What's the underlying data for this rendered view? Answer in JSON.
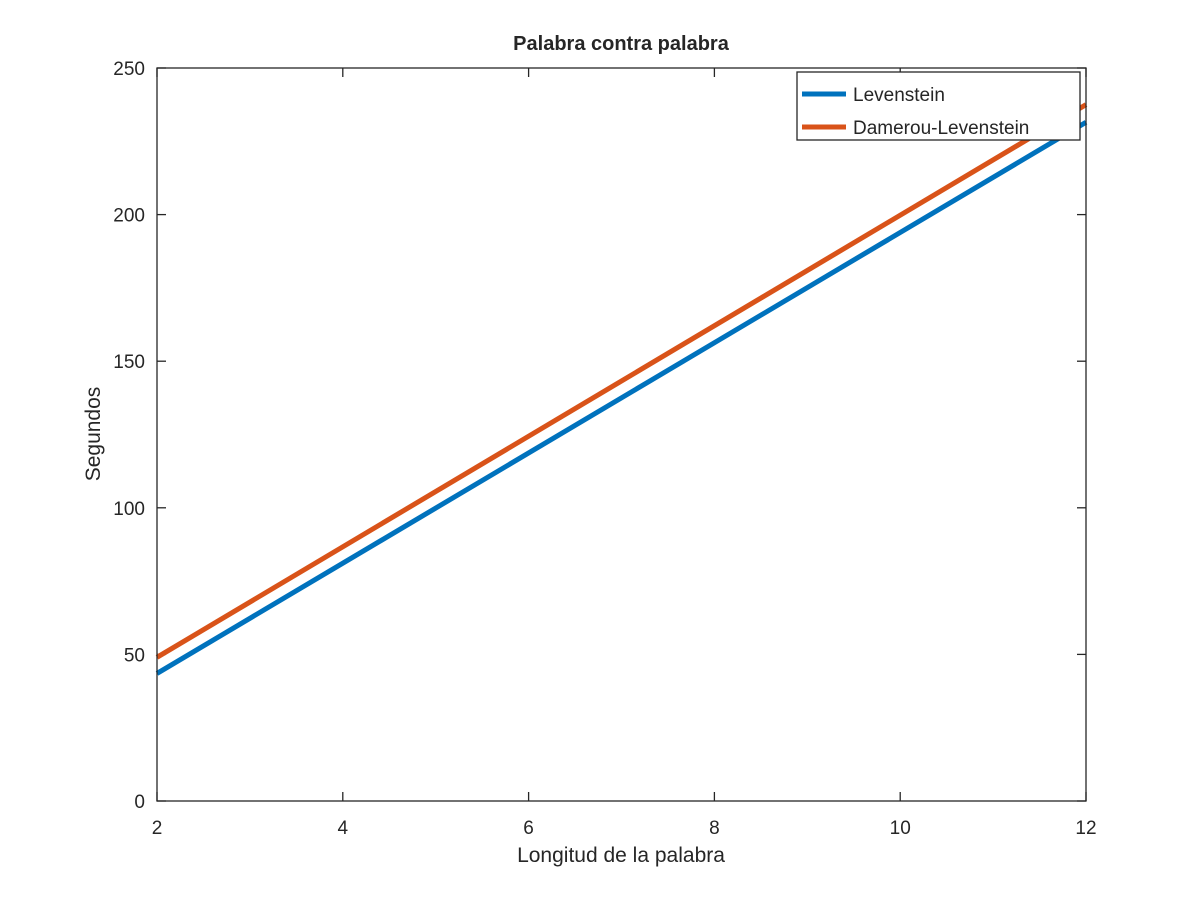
{
  "chart_data": {
    "type": "line",
    "title": "Palabra contra palabra",
    "xlabel": "Longitud de la palabra",
    "ylabel": "Segundos",
    "xlim": [
      2,
      12
    ],
    "ylim": [
      0,
      250
    ],
    "xticks": [
      2,
      4,
      6,
      8,
      10,
      12
    ],
    "yticks": [
      0,
      50,
      100,
      150,
      200,
      250
    ],
    "x": [
      2,
      12
    ],
    "series": [
      {
        "name": "Levenstein",
        "color": "#0072BD",
        "values": [
          43.5,
          231.5
        ]
      },
      {
        "name": "Damerou-Levenstein",
        "color": "#D95319",
        "values": [
          49,
          237.5
        ]
      }
    ],
    "legend": "top-right",
    "grid": false
  }
}
